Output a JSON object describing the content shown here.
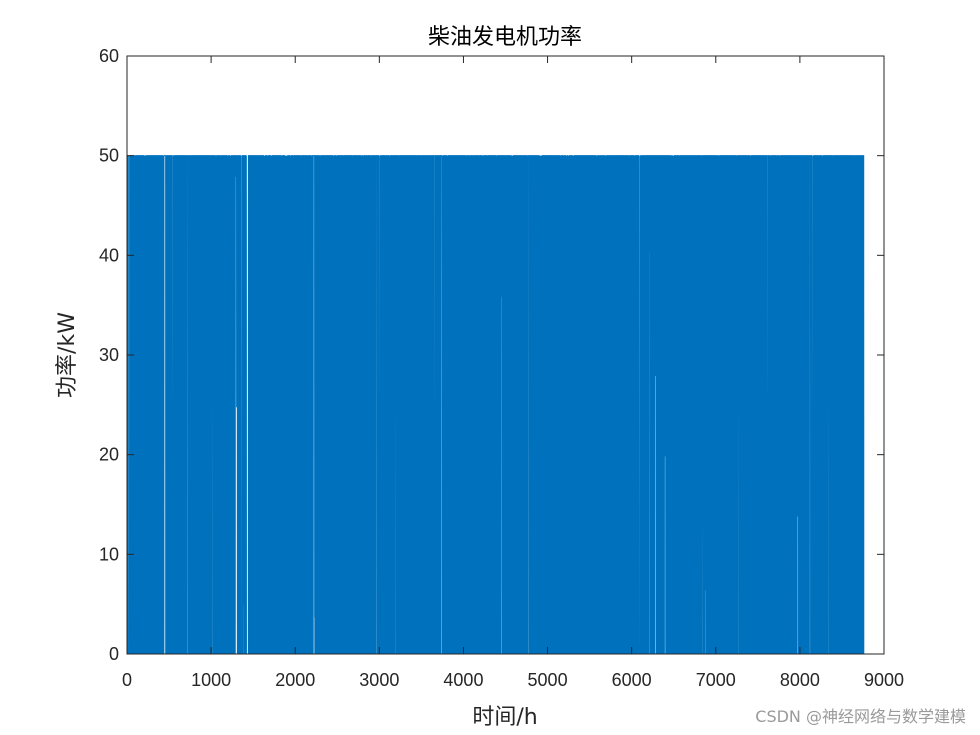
{
  "chart_data": {
    "type": "line",
    "title": "柴油发电机功率",
    "xlabel": "时间/h",
    "ylabel": "功率/kW",
    "xlim": [
      0,
      9000
    ],
    "ylim": [
      0,
      60
    ],
    "xticks": [
      0,
      1000,
      2000,
      3000,
      4000,
      5000,
      6000,
      7000,
      8000,
      9000
    ],
    "yticks": [
      0,
      10,
      20,
      30,
      40,
      50,
      60
    ],
    "grid": false,
    "legend": "none",
    "series": [
      {
        "color": "#0072BD",
        "x_start": 1,
        "x_end": 8760,
        "x_step": 1,
        "min_value": 0,
        "max_value": 50,
        "note_values": "hourly power alternating densely between 0 and 50 kW over the full year"
      }
    ]
  },
  "colors": {
    "series": "#0072BD",
    "axes": "#262626",
    "background": "#ffffff"
  },
  "watermark": "CSDN @神经网络与数学建模"
}
